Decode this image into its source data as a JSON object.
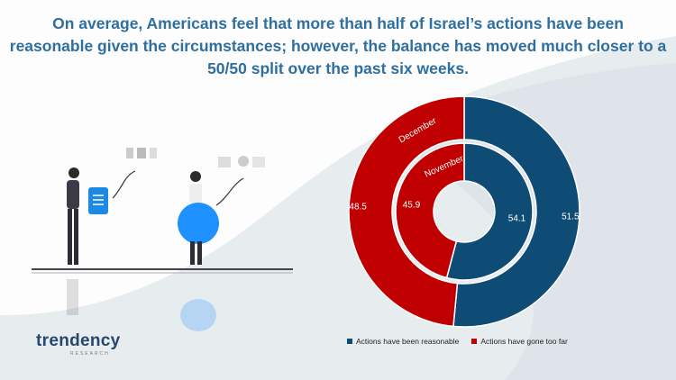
{
  "title": "On average, Americans feel that more than half of Israel’s actions have been reasonable given the circumstances; however, the balance has moved much closer to a 50/50 split over the past six weeks.",
  "brand": {
    "name": "trendency",
    "sub": "RESEARCH"
  },
  "colors": {
    "blue": "#0f4c75",
    "red": "#c00000",
    "title": "#2f6f9f"
  },
  "chart_data": {
    "type": "donut",
    "rings": [
      {
        "name": "December",
        "values": [
          51.5,
          48.5
        ]
      },
      {
        "name": "November",
        "values": [
          54.1,
          45.9
        ]
      }
    ],
    "series": [
      {
        "name": "Actions have been reasonable",
        "color": "#0f4c75"
      },
      {
        "name": "Actions have gone too far",
        "color": "#c00000"
      }
    ],
    "legend_position": "bottom"
  }
}
